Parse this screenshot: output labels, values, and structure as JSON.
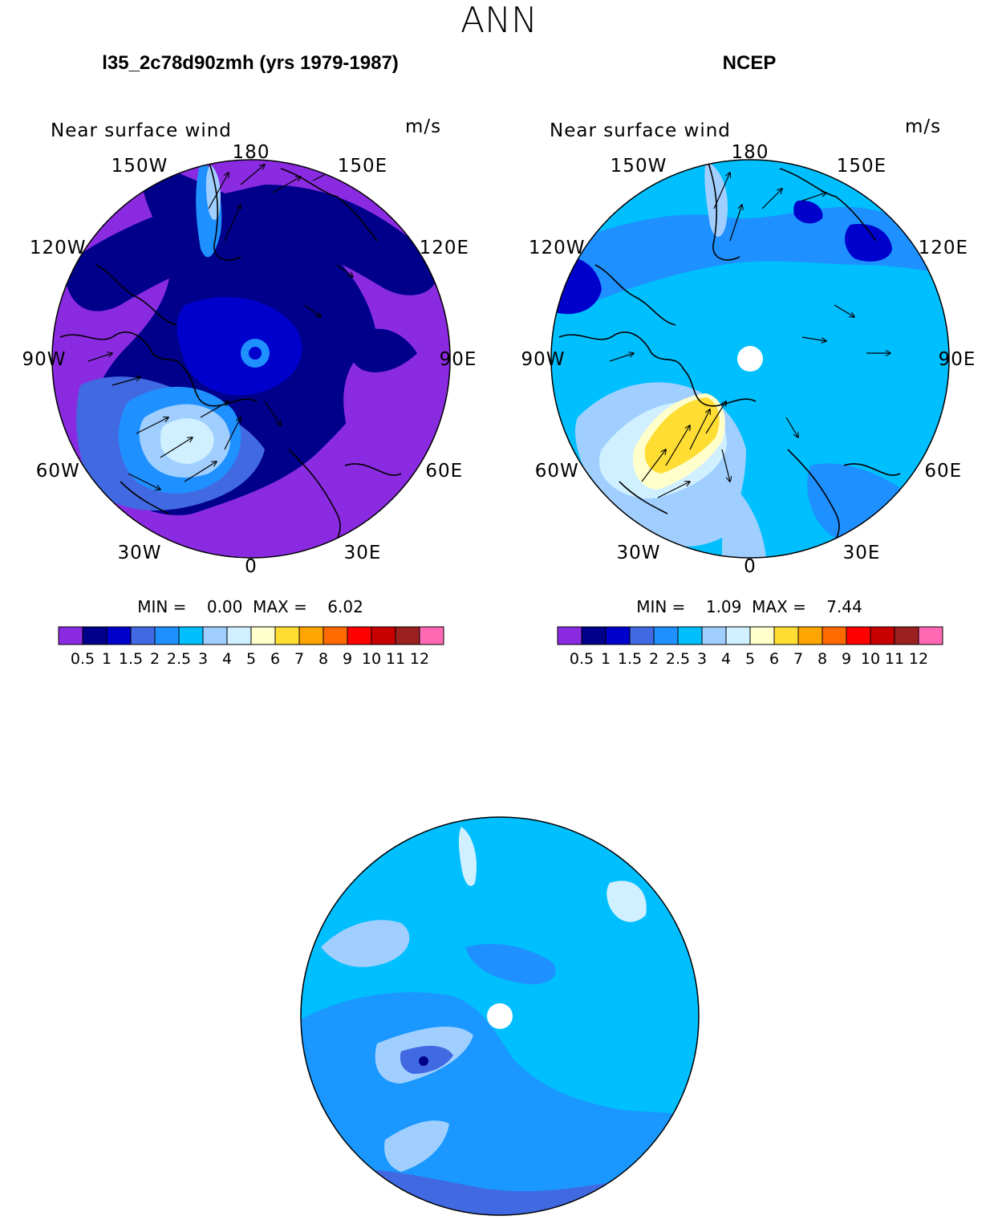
{
  "figure": {
    "title": "ANN"
  },
  "panels": [
    {
      "title": "l35_2c78d90zmh (yrs 1979-1987)",
      "variable": "Near surface wind",
      "units": "m/s",
      "stats_text": "MIN =    0.00  MAX =    6.02",
      "min": 0.0,
      "max": 6.02,
      "lon_labels": [
        "180",
        "150E",
        "120E",
        "90E",
        "60E",
        "30E",
        "0",
        "30W",
        "60W",
        "90W",
        "120W",
        "150W"
      ],
      "base_color": "#8a2be2"
    },
    {
      "title": "NCEP",
      "variable": "Near surface wind",
      "units": "m/s",
      "stats_text": "MIN =    1.09  MAX =    7.44",
      "min": 1.09,
      "max": 7.44,
      "lon_labels": [
        "180",
        "150E",
        "120E",
        "90E",
        "60E",
        "30E",
        "0",
        "30W",
        "60W",
        "90W",
        "120W",
        "150W"
      ],
      "base_color": "#00bfff"
    },
    {
      "title": "",
      "variable": "",
      "units": "",
      "base_color": "#00bfff"
    }
  ],
  "chart_data": {
    "type": "heatmap",
    "projection": "polar stereographic (north pole)",
    "colorbar": {
      "levels": [
        "0.5",
        "1",
        "1.5",
        "2",
        "2.5",
        "3",
        "4",
        "5",
        "6",
        "7",
        "8",
        "9",
        "10",
        "11",
        "12"
      ],
      "colors": [
        "#8a2be2",
        "#00008b",
        "#0000cd",
        "#4169e1",
        "#1e90ff",
        "#00bfff",
        "#a0cfff",
        "#d0f0ff",
        "#ffffcc",
        "#ffdd33",
        "#ffa500",
        "#ff6a00",
        "#ff0000",
        "#c80000",
        "#9b2020",
        "#ff69b4"
      ]
    }
  }
}
